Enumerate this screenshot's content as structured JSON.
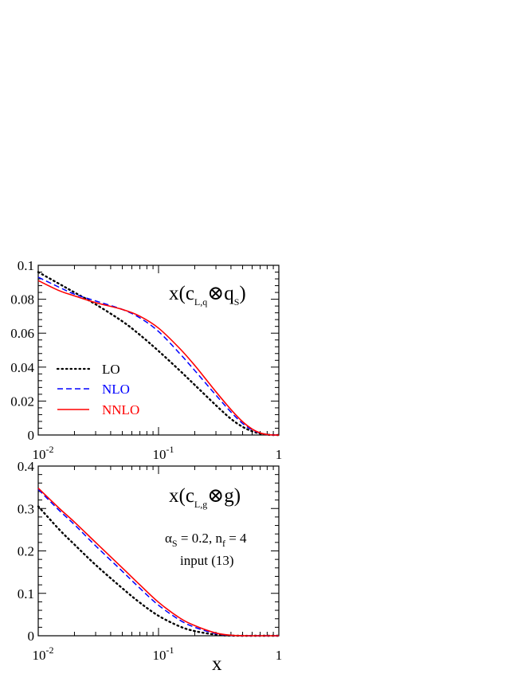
{
  "colors": {
    "LO": "#000000",
    "NLO": "#0000ff",
    "NNLO": "#ff0000",
    "axes": "#000000"
  },
  "xlabel": "x",
  "x_tick_labels": [
    {
      "base": "10",
      "exp": "-2",
      "value": 0.01
    },
    {
      "base": "10",
      "exp": "-1",
      "value": 0.1
    },
    {
      "base": "1",
      "exp": "",
      "value": 1
    }
  ],
  "legend": {
    "LO": "LO",
    "NLO": "NLO",
    "NNLO": "NNLO"
  },
  "top": {
    "label_pre": "x(c",
    "label_sub": "L,q",
    "label_mid": "⊗q",
    "label_sub2": "S",
    "label_post": ")",
    "y_tick_labels": [
      "0",
      "0.02",
      "0.04",
      "0.06",
      "0.08",
      "0.1"
    ]
  },
  "bottom": {
    "label_pre": "x(c",
    "label_sub": "L,g",
    "label_post": "⊗g)",
    "alpha_sym": "α",
    "alpha_sub": "S",
    "alpha_text": " = 0.2, n",
    "nf_sub": "f",
    "nf_text": " = 4",
    "input_text": "input (13)",
    "y_tick_labels": [
      "0",
      "0.1",
      "0.2",
      "0.3",
      "0.4"
    ]
  },
  "chart_data": [
    {
      "type": "line",
      "title": "x(c_{L,q} ⊗ q_S)",
      "xscale": "log",
      "xlim": [
        0.01,
        1
      ],
      "ylim": [
        0,
        0.1
      ],
      "legend_position": "left",
      "series": [
        {
          "name": "LO",
          "style": "dotted",
          "color": "#000000",
          "x": [
            0.01,
            0.015,
            0.02,
            0.03,
            0.05,
            0.07,
            0.1,
            0.15,
            0.2,
            0.3,
            0.4,
            0.5,
            0.6,
            0.7,
            0.8,
            0.9,
            1.0
          ],
          "y": [
            0.096,
            0.089,
            0.084,
            0.077,
            0.067,
            0.059,
            0.0495,
            0.038,
            0.0295,
            0.0175,
            0.0095,
            0.0048,
            0.0022,
            0.0008,
            0.0002,
            0.0,
            0.0
          ]
        },
        {
          "name": "NLO",
          "style": "dashed",
          "color": "#0000ff",
          "x": [
            0.01,
            0.015,
            0.02,
            0.03,
            0.05,
            0.07,
            0.1,
            0.15,
            0.2,
            0.3,
            0.4,
            0.5,
            0.6,
            0.7,
            0.8,
            0.9,
            1.0
          ],
          "y": [
            0.093,
            0.087,
            0.083,
            0.079,
            0.074,
            0.069,
            0.061,
            0.048,
            0.038,
            0.0235,
            0.0135,
            0.0068,
            0.003,
            0.0011,
            0.0003,
            0.0,
            0.0
          ]
        },
        {
          "name": "NNLO",
          "style": "solid",
          "color": "#ff0000",
          "x": [
            0.01,
            0.015,
            0.02,
            0.03,
            0.05,
            0.07,
            0.1,
            0.15,
            0.2,
            0.3,
            0.4,
            0.5,
            0.6,
            0.7,
            0.8,
            0.9,
            1.0
          ],
          "y": [
            0.091,
            0.085,
            0.082,
            0.078,
            0.074,
            0.07,
            0.063,
            0.051,
            0.041,
            0.0255,
            0.015,
            0.0078,
            0.0035,
            0.0012,
            0.0003,
            0.0,
            0.0
          ]
        }
      ]
    },
    {
      "type": "line",
      "title": "x(c_{L,g} ⊗ g)",
      "xscale": "log",
      "xlim": [
        0.01,
        1
      ],
      "ylim": [
        0,
        0.4
      ],
      "xlabel": "x",
      "annotations": [
        "α_S = 0.2, n_f = 4",
        "input (13)"
      ],
      "series": [
        {
          "name": "LO",
          "style": "dotted",
          "color": "#000000",
          "x": [
            0.01,
            0.015,
            0.02,
            0.03,
            0.05,
            0.07,
            0.1,
            0.15,
            0.2,
            0.3,
            0.4,
            0.5,
            0.7,
            1.0
          ],
          "y": [
            0.305,
            0.25,
            0.215,
            0.167,
            0.112,
            0.078,
            0.047,
            0.022,
            0.011,
            0.0025,
            0.0004,
            0.0,
            0.0,
            0.0
          ]
        },
        {
          "name": "NLO",
          "style": "dashed",
          "color": "#0000ff",
          "x": [
            0.01,
            0.015,
            0.02,
            0.03,
            0.05,
            0.07,
            0.1,
            0.15,
            0.2,
            0.3,
            0.4,
            0.5,
            0.7,
            1.0
          ],
          "y": [
            0.345,
            0.295,
            0.262,
            0.212,
            0.152,
            0.112,
            0.072,
            0.037,
            0.02,
            0.005,
            0.0009,
            0.0001,
            0.0,
            0.0
          ]
        },
        {
          "name": "NNLO",
          "style": "solid",
          "color": "#ff0000",
          "x": [
            0.01,
            0.015,
            0.02,
            0.03,
            0.05,
            0.07,
            0.1,
            0.15,
            0.2,
            0.3,
            0.4,
            0.5,
            0.7,
            1.0
          ],
          "y": [
            0.348,
            0.3,
            0.268,
            0.22,
            0.16,
            0.12,
            0.079,
            0.042,
            0.024,
            0.0065,
            0.0013,
            0.0002,
            0.0,
            0.0
          ]
        }
      ]
    }
  ]
}
